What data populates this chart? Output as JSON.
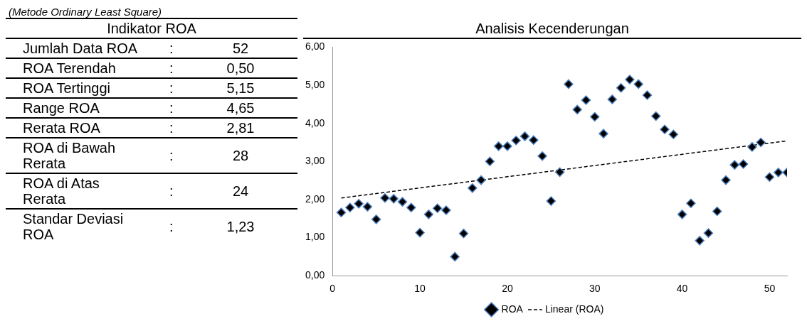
{
  "chart_data": [
    {
      "type": "other",
      "title": "Indikator ROA",
      "subtitle": "(Metode Ordinary Least Square)",
      "categories": [
        "Jumlah Data ROA",
        "ROA Terendah",
        "ROA Tertinggi",
        "Range ROA",
        "Rerata ROA",
        "ROA di Bawah Rerata",
        "ROA di Atas Rerata",
        "Standar Deviasi ROA"
      ],
      "value_labels": [
        "52",
        "0,50",
        "5,15",
        "4,65",
        "2,81",
        "28",
        "24",
        "1,23"
      ],
      "annotations": [
        ":",
        ":",
        ":",
        ":",
        ":",
        ":",
        ":",
        ":"
      ]
    },
    {
      "type": "scatter",
      "title": "Analisis Kecenderungan",
      "marker": "diamond",
      "legend": "bottom",
      "grid": false,
      "xlim": [
        0,
        52
      ],
      "xticks": [
        0,
        10,
        20,
        30,
        40,
        50
      ],
      "ylim": [
        0,
        6
      ],
      "yticks": [
        {
          "value": 0,
          "label": "0,00"
        },
        {
          "value": 1,
          "label": "1,00"
        },
        {
          "value": 2,
          "label": "2,00"
        },
        {
          "value": 3,
          "label": "3,00"
        },
        {
          "value": 4,
          "label": "4,00"
        },
        {
          "value": 5,
          "label": "5,00"
        },
        {
          "value": 6,
          "label": "6,00"
        }
      ],
      "x": [
        1,
        2,
        3,
        4,
        5,
        6,
        7,
        8,
        9,
        10,
        11,
        12,
        13,
        14,
        15,
        16,
        17,
        18,
        19,
        20,
        21,
        22,
        23,
        24,
        25,
        26,
        27,
        28,
        29,
        30,
        31,
        32,
        33,
        34,
        35,
        36,
        37,
        38,
        39,
        40,
        41,
        42,
        43,
        44,
        45,
        46,
        47,
        48,
        49,
        50,
        51,
        52
      ],
      "series": [
        {
          "name": "ROA",
          "color": "#000000",
          "values": [
            1.66,
            1.79,
            1.89,
            1.81,
            1.48,
            2.04,
            2.02,
            1.94,
            1.79,
            1.13,
            1.61,
            1.77,
            1.72,
            0.5,
            1.11,
            2.3,
            2.51,
            3.0,
            3.4,
            3.4,
            3.55,
            3.66,
            3.56,
            3.14,
            1.96,
            2.72,
            5.03,
            4.36,
            4.61,
            4.17,
            3.73,
            4.63,
            4.93,
            5.15,
            5.03,
            4.74,
            4.19,
            3.84,
            3.71,
            1.61,
            1.9,
            0.92,
            1.12,
            1.69,
            2.51,
            2.91,
            2.93,
            3.38,
            3.5,
            2.59,
            2.71,
            2.71
          ]
        },
        {
          "name": "Linear (ROA)",
          "type": "line",
          "color": "#000000",
          "line_style": "dashed",
          "marker": "none",
          "x": [
            1,
            52
          ],
          "values": [
            2.04,
            3.54
          ]
        }
      ]
    }
  ]
}
